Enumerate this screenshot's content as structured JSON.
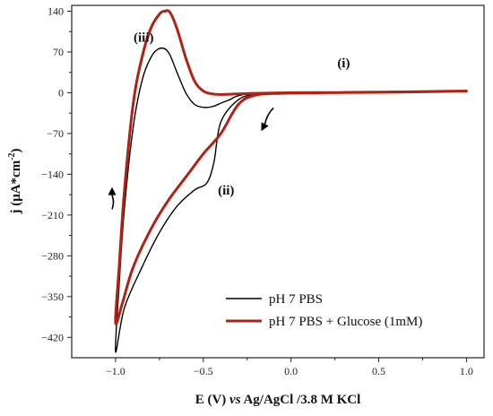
{
  "chart_data": {
    "type": "line",
    "title": "",
    "xlabel_parts": [
      {
        "text": "E (V) ",
        "italic": false
      },
      {
        "text": "vs",
        "italic": true
      },
      {
        "text": " Ag/AgCl /3.8 M KCl",
        "italic": false
      }
    ],
    "ylabel_parts": [
      {
        "text": "j (μA*cm",
        "sup": false
      },
      {
        "text": "-2",
        "sup": true
      },
      {
        "text": ")",
        "sup": false
      }
    ],
    "xlim": [
      -1.25,
      1.1
    ],
    "ylim": [
      -455,
      150
    ],
    "xticks": [
      -1.0,
      -0.5,
      0.0,
      0.5,
      1.0
    ],
    "xtick_labels": [
      "−1.0",
      "−0.5",
      "0.0",
      "0.5",
      "1.0"
    ],
    "yticks": [
      140,
      70,
      0,
      -70,
      -140,
      -210,
      -280,
      -350,
      -420
    ],
    "ytick_labels": [
      "140",
      "70",
      "0",
      "−70",
      "−140",
      "−210",
      "−280",
      "−350",
      "−420"
    ],
    "grid": false,
    "legend_position": "bottom-right",
    "annotations": [
      {
        "text": "(i)",
        "x": 0.3,
        "y": 44
      },
      {
        "text": "(ii)",
        "x": -0.37,
        "y": -175
      },
      {
        "text": "(iii)",
        "x": -0.84,
        "y": 88
      }
    ],
    "arrows": [
      {
        "from": [
          -0.1,
          -26
        ],
        "to": [
          -0.17,
          -66
        ]
      },
      {
        "from": [
          -1.02,
          -200
        ],
        "to": [
          -1.02,
          -162
        ]
      }
    ],
    "series": [
      {
        "name": "pH 7 PBS",
        "color": "#000000",
        "width": 1.4,
        "points": [
          [
            1.0,
            2
          ],
          [
            0.6,
            1
          ],
          [
            0.2,
            0
          ],
          [
            -0.05,
            -1
          ],
          [
            -0.2,
            -3
          ],
          [
            -0.3,
            -12
          ],
          [
            -0.4,
            -50
          ],
          [
            -0.44,
            -120
          ],
          [
            -0.48,
            -155
          ],
          [
            -0.55,
            -167
          ],
          [
            -0.65,
            -195
          ],
          [
            -0.75,
            -240
          ],
          [
            -0.85,
            -300
          ],
          [
            -0.95,
            -370
          ],
          [
            -1.0,
            -445
          ],
          [
            -0.98,
            -330
          ],
          [
            -0.95,
            -200
          ],
          [
            -0.9,
            -60
          ],
          [
            -0.85,
            20
          ],
          [
            -0.8,
            60
          ],
          [
            -0.75,
            76
          ],
          [
            -0.7,
            70
          ],
          [
            -0.65,
            35
          ],
          [
            -0.6,
            0
          ],
          [
            -0.55,
            -20
          ],
          [
            -0.5,
            -25
          ],
          [
            -0.45,
            -24
          ],
          [
            -0.4,
            -18
          ],
          [
            -0.35,
            -12
          ],
          [
            -0.3,
            -5
          ],
          [
            -0.2,
            -1
          ],
          [
            0.0,
            0
          ],
          [
            0.5,
            1
          ],
          [
            1.0,
            2
          ]
        ]
      },
      {
        "name": "pH 7 PBS + Glucose (1mM)",
        "color": "#b32014",
        "width": 3.0,
        "points": [
          [
            1.0,
            3
          ],
          [
            0.6,
            1
          ],
          [
            0.2,
            0
          ],
          [
            -0.05,
            -1
          ],
          [
            -0.2,
            -4
          ],
          [
            -0.3,
            -20
          ],
          [
            -0.4,
            -70
          ],
          [
            -0.5,
            -105
          ],
          [
            -0.6,
            -145
          ],
          [
            -0.7,
            -185
          ],
          [
            -0.8,
            -235
          ],
          [
            -0.9,
            -300
          ],
          [
            -0.96,
            -360
          ],
          [
            -1.0,
            -395
          ],
          [
            -0.98,
            -300
          ],
          [
            -0.95,
            -170
          ],
          [
            -0.9,
            -20
          ],
          [
            -0.85,
            60
          ],
          [
            -0.8,
            110
          ],
          [
            -0.75,
            135
          ],
          [
            -0.72,
            140
          ],
          [
            -0.69,
            138
          ],
          [
            -0.65,
            110
          ],
          [
            -0.6,
            60
          ],
          [
            -0.55,
            20
          ],
          [
            -0.5,
            3
          ],
          [
            -0.45,
            -2
          ],
          [
            -0.4,
            -3
          ],
          [
            -0.3,
            -2
          ],
          [
            -0.2,
            -1
          ],
          [
            0.0,
            0
          ],
          [
            0.5,
            1
          ],
          [
            1.0,
            3
          ]
        ]
      }
    ]
  }
}
